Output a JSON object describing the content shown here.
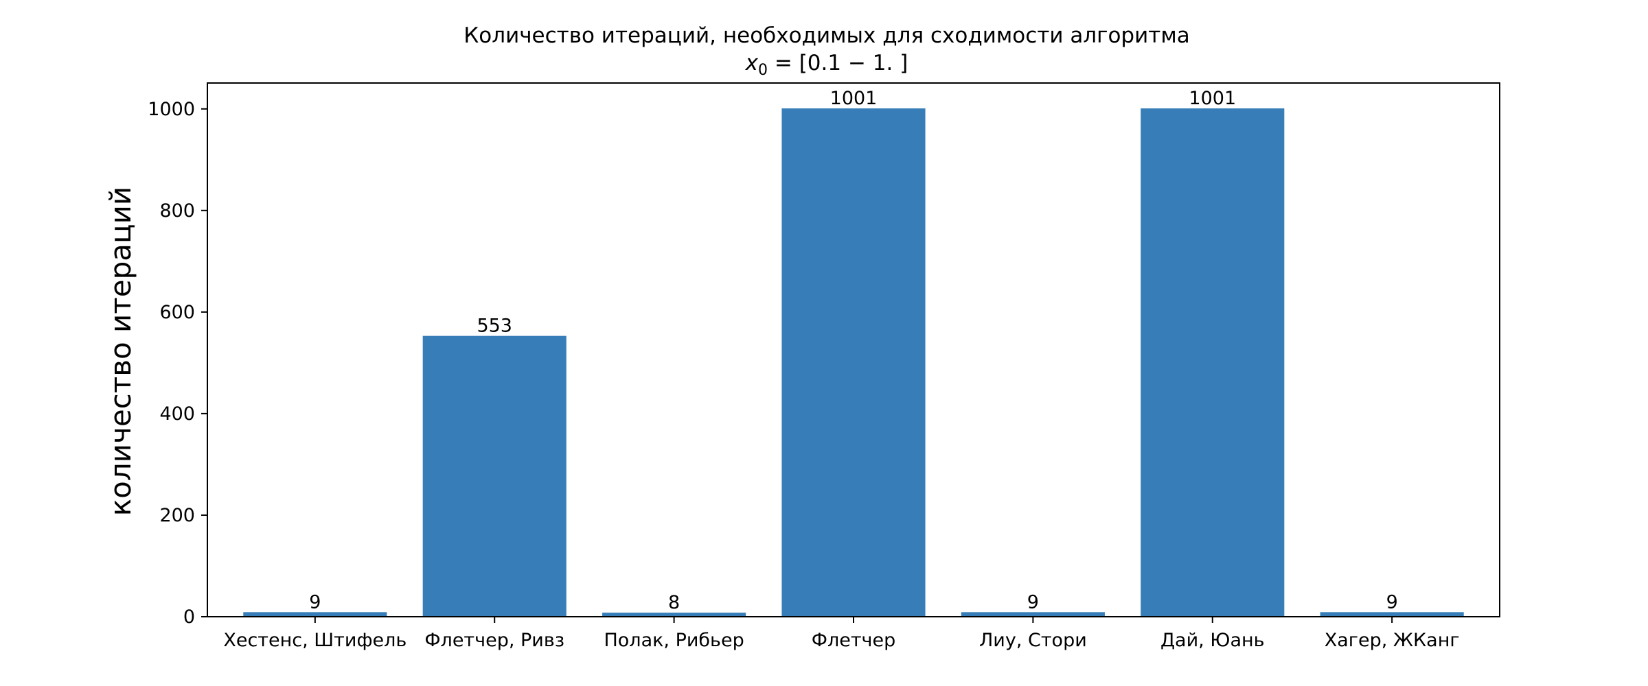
{
  "chart_data": {
    "type": "bar",
    "title": "Количество итераций, необходимых для сходимости алгоритма",
    "subtitle_parts": {
      "var": "x",
      "sub": "0",
      "rest": " = [0.1 − 1. ]"
    },
    "xlabel": "",
    "ylabel": "количество итераций",
    "categories": [
      "Хестенс, Штифель",
      "Флетчер, Ривз",
      "Полак, Рибьер",
      "Флетчер",
      "Лиу, Стори",
      "Дай, Юань",
      "Хагер, ЖКанг"
    ],
    "values": [
      9,
      553,
      8,
      1001,
      9,
      1001,
      9
    ],
    "bar_labels": [
      "9",
      "553",
      "8",
      "1001",
      "9",
      "1001",
      "9"
    ],
    "ylim": [
      0,
      1051
    ],
    "yticks": [
      0,
      200,
      400,
      600,
      800,
      1000
    ],
    "bar_color": "#377eb8",
    "grid": false,
    "legend": "none"
  }
}
